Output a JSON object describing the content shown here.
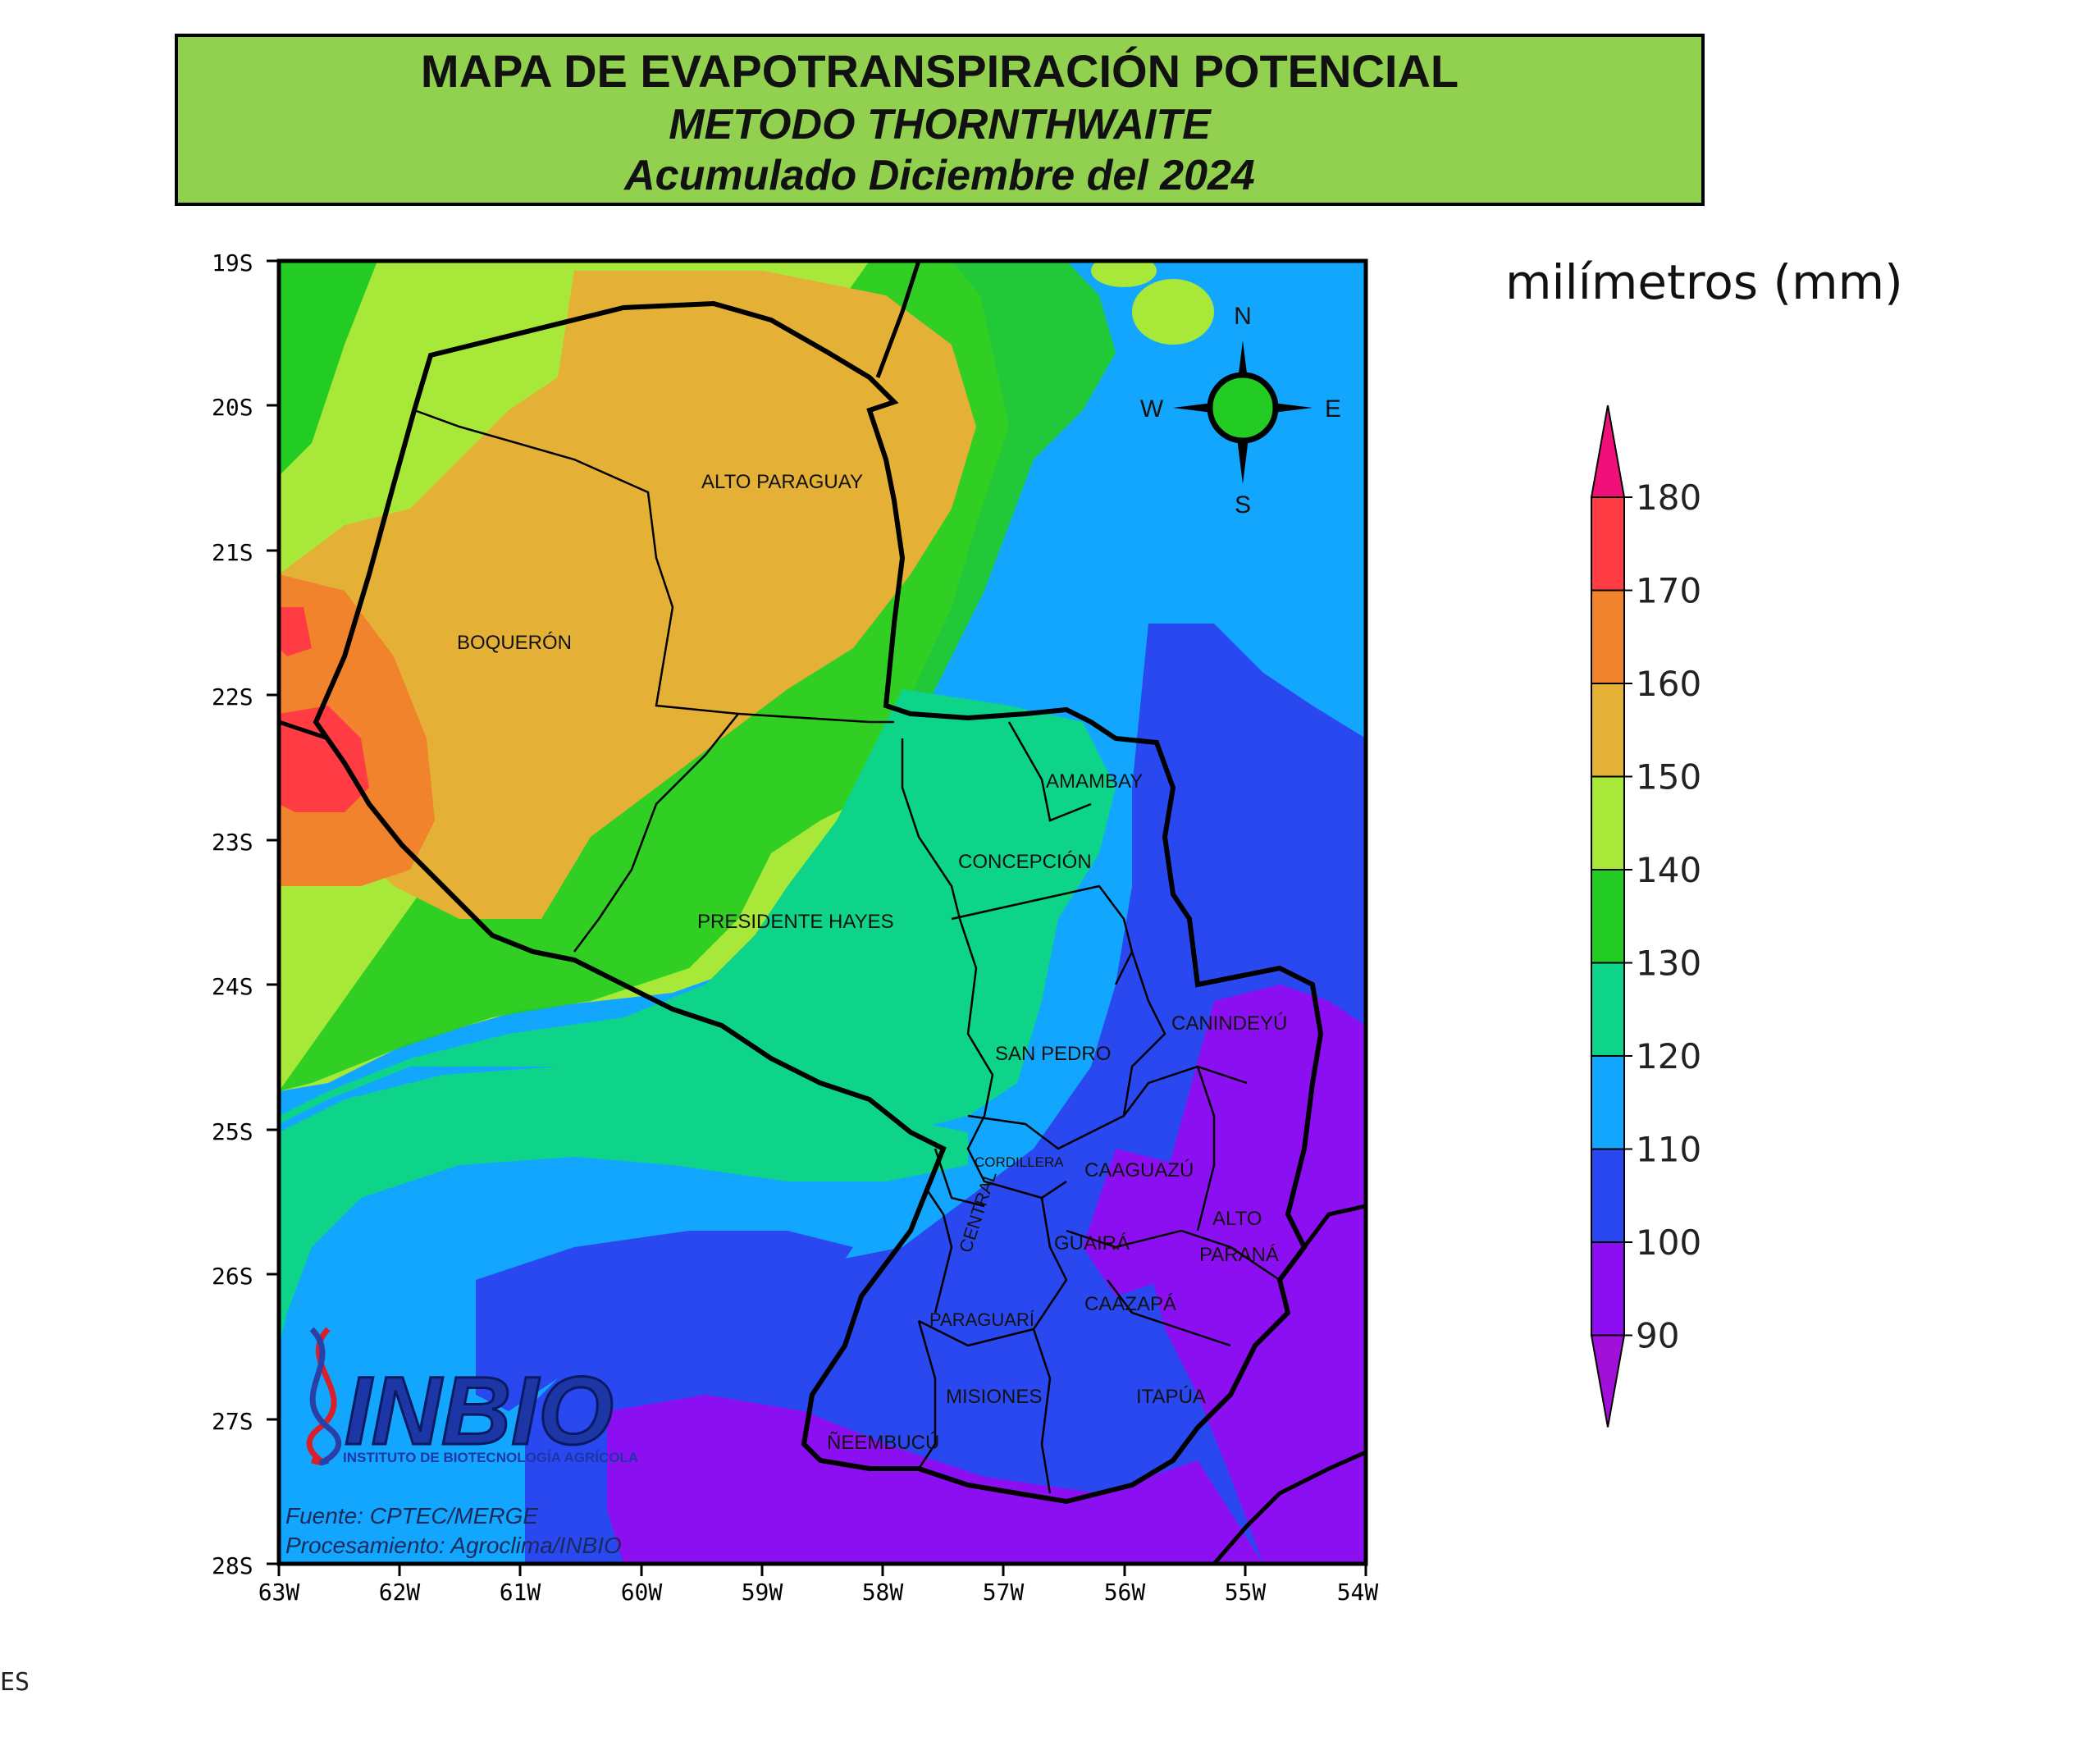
{
  "title": {
    "line1": "MAPA DE EVAPOTRANSPIRACIÓN POTENCIAL",
    "line2": "METODO THORNTHWAITE",
    "line3": "Acumulado Diciembre del 2024"
  },
  "unit_label": "milímetros (mm)",
  "compass": {
    "n": "N",
    "s": "S",
    "e": "E",
    "w": "W"
  },
  "lat_ticks": [
    "19S",
    "20S",
    "21S",
    "22S",
    "23S",
    "24S",
    "25S",
    "26S",
    "27S",
    "28S"
  ],
  "lon_ticks": [
    "63W",
    "62W",
    "61W",
    "60W",
    "59W",
    "58W",
    "57W",
    "56W",
    "55W",
    "54W"
  ],
  "legend": {
    "labels": [
      "180",
      "170",
      "160",
      "150",
      "140",
      "130",
      "120",
      "110",
      "100",
      "90"
    ],
    "colors": [
      "#ff3c44",
      "#f0832c",
      "#e4b035",
      "#a8e838",
      "#23cc22",
      "#0ed48a",
      "#13a6ff",
      "#2a48f0",
      "#8b0ff0"
    ],
    "over_color": "#f0107a",
    "under_color": "#a010d8"
  },
  "regions": [
    {
      "name": "ALTO PARAGUAY"
    },
    {
      "name": "BOQUERÓN"
    },
    {
      "name": "AMAMBAY"
    },
    {
      "name": "CONCEPCIÓN"
    },
    {
      "name": "PRESIDENTE HAYES"
    },
    {
      "name": "CANINDEYÚ"
    },
    {
      "name": "SAN PEDRO"
    },
    {
      "name": "CORDILLERA"
    },
    {
      "name": "CAAGUAZÚ"
    },
    {
      "name": "ALTO"
    },
    {
      "name": "PARANÁ"
    },
    {
      "name": "CENTRAL"
    },
    {
      "name": "GUAIRÁ"
    },
    {
      "name": "CAAZAPÁ"
    },
    {
      "name": "PARAGUARÍ"
    },
    {
      "name": "MISIONES"
    },
    {
      "name": "ITAPÚA"
    },
    {
      "name": "ÑEEMBUCÚ"
    }
  ],
  "logo": {
    "name": "INBIO",
    "subtitle": "INSTITUTO DE BIOTECNOLOGÍA AGRÍCOLA"
  },
  "credits": {
    "source": "Fuente: CPTEC/MERGE",
    "processing": "Procesamiento: Agroclima/INBIO"
  },
  "stray_text": "ES"
}
